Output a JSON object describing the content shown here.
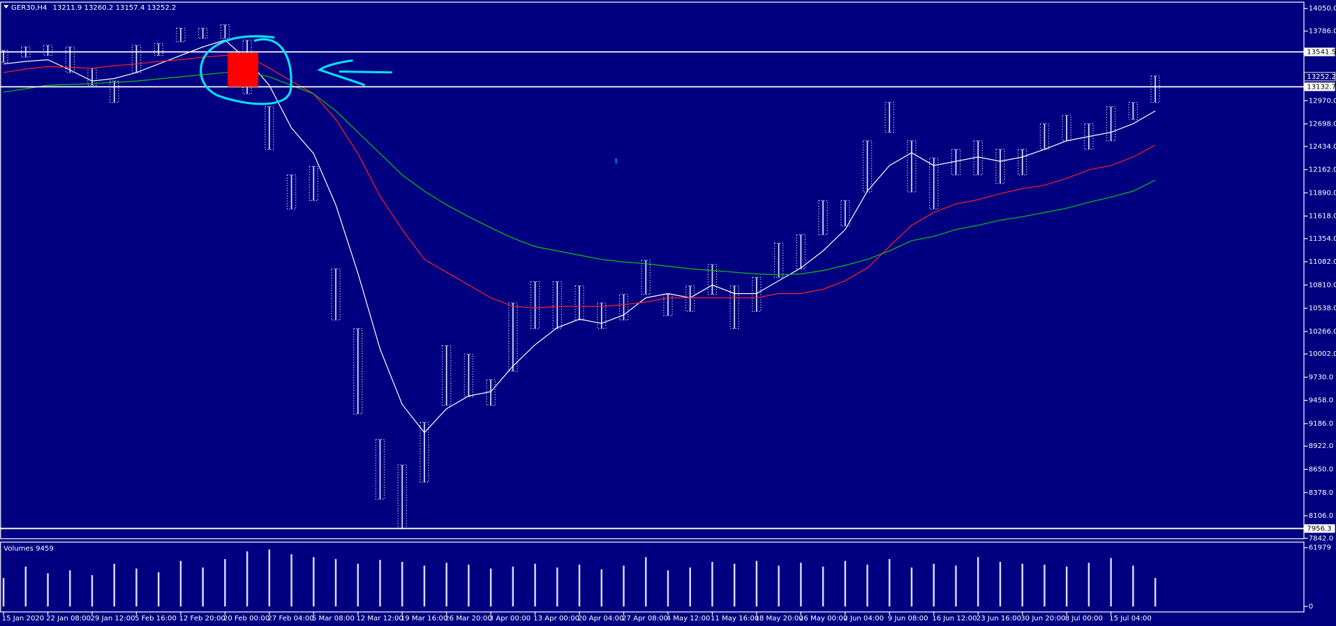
{
  "chart_data": [
    {
      "type": "hilo",
      "title": "GER30,H4",
      "ohlc": [
        13211.9,
        13260.2,
        13157.4,
        13252.2
      ],
      "categories": [
        "15 Jan 2020",
        null,
        "22 Jan 08:00",
        null,
        "29 Jan 12:00",
        null,
        "5 Feb 16:00",
        null,
        "12 Feb 20:00",
        null,
        "20 Feb 00:00",
        null,
        "27 Feb 04:00",
        null,
        "5 Mar 08:00",
        null,
        "12 Mar 12:00",
        null,
        "19 Mar 16:00",
        null,
        "26 Mar 20:00",
        null,
        "3 Apr 00:00",
        null,
        "13 Apr 00:00",
        null,
        "20 Apr 04:00",
        null,
        "27 Apr 08:00",
        null,
        "4 May 12:00",
        null,
        "11 May 16:00",
        null,
        "18 May 20:00",
        null,
        "26 May 00:00",
        null,
        "2 Jun 04:00",
        null,
        "9 Jun 08:00",
        null,
        "16 Jun 12:00",
        null,
        "23 Jun 16:00",
        null,
        "30 Jun 20:00",
        null,
        "8 Jul 00:00",
        null,
        "15 Jul 04:00",
        null,
        null
      ],
      "high": [
        13560,
        13600,
        13620,
        13600,
        13350,
        13200,
        13620,
        13640,
        13820,
        13820,
        13860,
        13680,
        12900,
        12100,
        12200,
        11000,
        10300,
        9000,
        8700,
        9200,
        10100,
        10000,
        9700,
        10600,
        10850,
        10850,
        10800,
        10600,
        10700,
        11100,
        10700,
        10800,
        11050,
        10800,
        10900,
        11300,
        11400,
        11800,
        11800,
        12500,
        12950,
        12500,
        12300,
        12400,
        12500,
        12400,
        12400,
        12700,
        12800,
        12700,
        12900,
        12950,
        13260
      ],
      "low": [
        13420,
        13480,
        13500,
        13300,
        13150,
        12950,
        13300,
        13500,
        13660,
        13700,
        13700,
        13050,
        12400,
        11700,
        11800,
        10400,
        9300,
        8300,
        7960,
        8500,
        9400,
        9500,
        9400,
        9800,
        10300,
        10300,
        10400,
        10300,
        10400,
        10700,
        10450,
        10500,
        10700,
        10300,
        10500,
        10900,
        11000,
        11400,
        11500,
        11900,
        12600,
        11900,
        11700,
        12100,
        12100,
        12000,
        12100,
        12400,
        12500,
        12400,
        12500,
        12750,
        12950
      ],
      "color": "#dcdcff",
      "lines": [
        {
          "color": "#ffffff",
          "values": [
            13400,
            13430,
            13450,
            13330,
            13200,
            13230,
            13300,
            13400,
            13500,
            13600,
            13680,
            13450,
            13150,
            12650,
            12350,
            11750,
            10950,
            10060,
            9410,
            9080,
            9360,
            9510,
            9560,
            9860,
            10110,
            10310,
            10410,
            10360,
            10460,
            10660,
            10710,
            10660,
            10810,
            10710,
            10710,
            10860,
            11010,
            11210,
            11460,
            11910,
            12210,
            12360,
            12210,
            12260,
            12310,
            12260,
            12310,
            12400,
            12500,
            12550,
            12600,
            12700,
            12850
          ]
        },
        {
          "color": "#ff2020",
          "values": [
            13300,
            13340,
            13370,
            13360,
            13350,
            13380,
            13400,
            13430,
            13450,
            13480,
            13500,
            13500,
            13350,
            13200,
            13050,
            12750,
            12350,
            11850,
            11460,
            11110,
            10960,
            10810,
            10660,
            10560,
            10540,
            10560,
            10560,
            10560,
            10580,
            10610,
            10660,
            10660,
            10660,
            10660,
            10660,
            10710,
            10710,
            10760,
            10860,
            11010,
            11260,
            11510,
            11660,
            11760,
            11810,
            11880,
            11940,
            11980,
            12060,
            12160,
            12210,
            12310,
            12450
          ]
        },
        {
          "color": "#10c010",
          "values": [
            13070,
            13110,
            13150,
            13160,
            13170,
            13185,
            13200,
            13225,
            13250,
            13275,
            13300,
            13300,
            13250,
            13150,
            13050,
            12850,
            12600,
            12350,
            12100,
            11910,
            11750,
            11610,
            11480,
            11360,
            11260,
            11210,
            11160,
            11110,
            11080,
            11060,
            11030,
            11000,
            10980,
            10960,
            10940,
            10930,
            10940,
            10980,
            11040,
            11110,
            11210,
            11330,
            11380,
            11460,
            11510,
            11570,
            11610,
            11660,
            11710,
            11780,
            11840,
            11910,
            12040
          ]
        }
      ],
      "hlines": [
        13541.5,
        13132.7,
        7956.3
      ],
      "ylim": [
        7842,
        14120
      ],
      "yticks": [
        {
          "value": 14050,
          "label": "14050.0"
        },
        {
          "value": 13786,
          "label": "13786.0"
        },
        {
          "value": 12970,
          "label": "12970.0"
        },
        {
          "value": 12698,
          "label": "12698.0"
        },
        {
          "value": 12434,
          "label": "12434.0"
        },
        {
          "value": 12162,
          "label": "12162.0"
        },
        {
          "value": 11890,
          "label": "11890.0"
        },
        {
          "value": 11618,
          "label": "11618.0"
        },
        {
          "value": 11354,
          "label": "11354.0"
        },
        {
          "value": 11082,
          "label": "11082.0"
        },
        {
          "value": 10810,
          "label": "10810.0"
        },
        {
          "value": 10538,
          "label": "10538.0"
        },
        {
          "value": 10266,
          "label": "10266.0"
        },
        {
          "value": 10002,
          "label": "10002.0"
        },
        {
          "value": 9730,
          "label": "9730.0"
        },
        {
          "value": 9458,
          "label": "9458.0"
        },
        {
          "value": 9186,
          "label": "9186.0"
        },
        {
          "value": 8922,
          "label": "8922.0"
        },
        {
          "value": 8650,
          "label": "8650.0"
        },
        {
          "value": 8378,
          "label": "8378.0"
        },
        {
          "value": 8106,
          "label": "8106.0"
        },
        {
          "value": 7842,
          "label": "7842.0"
        }
      ]
    },
    {
      "type": "bar",
      "title": "Volumes",
      "current": 9459,
      "color": "#dcdcff",
      "values": [
        30000,
        42000,
        35000,
        38000,
        33000,
        45000,
        40000,
        36000,
        48000,
        41000,
        50000,
        58000,
        60000,
        55000,
        52000,
        50000,
        45000,
        49000,
        47000,
        43000,
        46000,
        44000,
        40000,
        42000,
        45000,
        41000,
        44000,
        39000,
        43000,
        52000,
        38000,
        41000,
        47000,
        45000,
        48000,
        43000,
        46000,
        42000,
        48000,
        44000,
        50000,
        41000,
        45000,
        43000,
        52000,
        47000,
        45000,
        44000,
        42000,
        46000,
        51000,
        43000,
        30000
      ],
      "ylim": [
        0,
        61979
      ],
      "yticks": [
        0,
        61979
      ]
    }
  ]
}
